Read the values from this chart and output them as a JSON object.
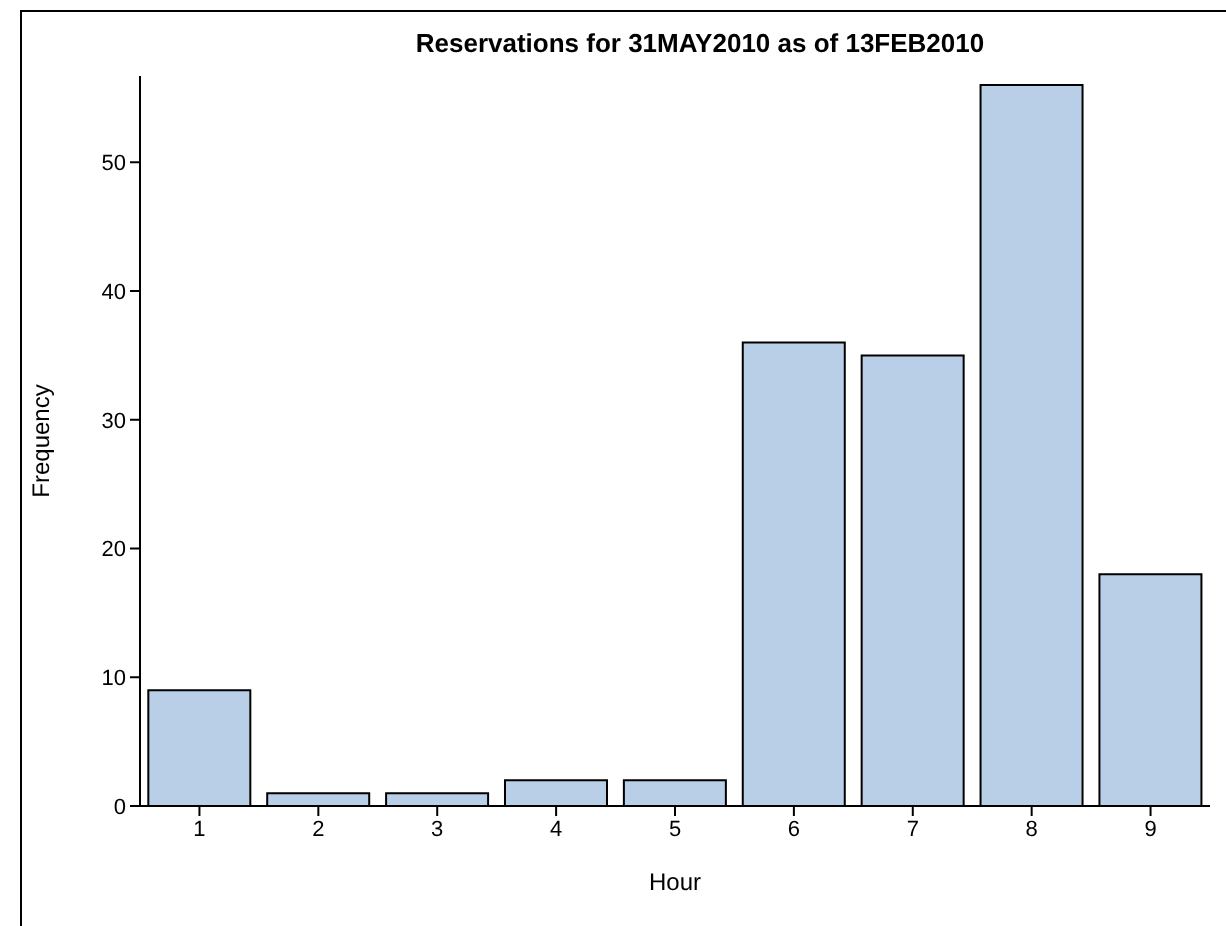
{
  "chart_data": {
    "type": "bar",
    "title": "Reservations for 31MAY2010 as of 13FEB2010",
    "xlabel": "Hour",
    "ylabel": "Frequency",
    "categories": [
      "1",
      "2",
      "3",
      "4",
      "5",
      "6",
      "7",
      "8",
      "9"
    ],
    "values": [
      9,
      1,
      1,
      2,
      2,
      36,
      35,
      56,
      18
    ],
    "color": "#b9cfe7",
    "ylim": [
      0,
      56.7
    ],
    "yticks": [
      0,
      10,
      20,
      30,
      40,
      50
    ],
    "grid": false,
    "legend": false
  }
}
